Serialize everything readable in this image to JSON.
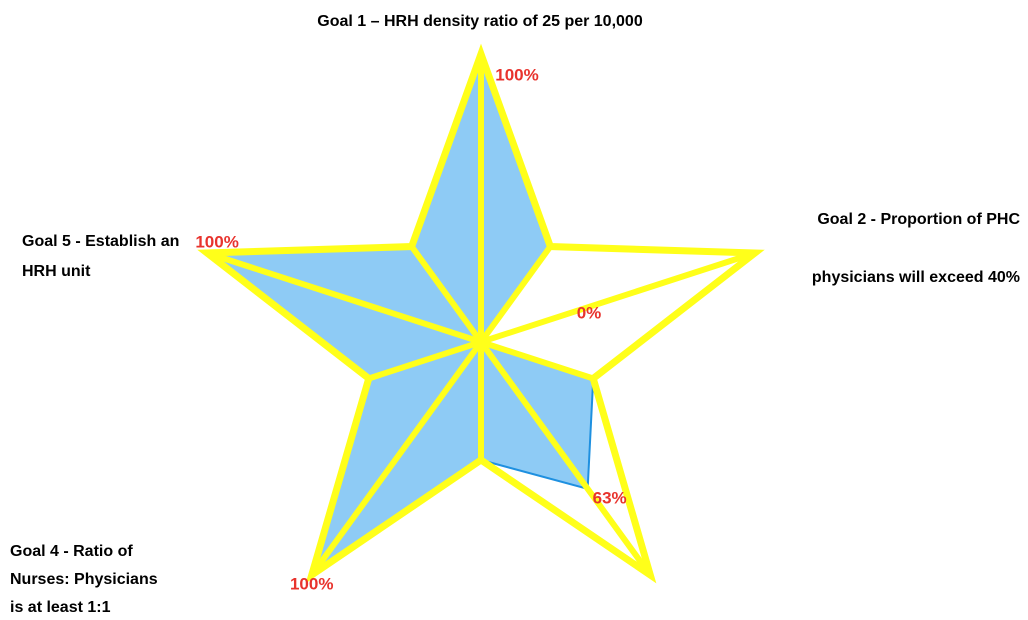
{
  "chart_data": {
    "type": "radar",
    "categories": [
      [
        "Goal 1 – HRH density ratio of 25 per 10,000"
      ],
      [
        "Goal 2 - Proportion of PHC",
        "physicians will exceed 40%"
      ],
      null,
      [
        "Goal 4  - Ratio of",
        "Nurses: Physicians",
        " is at least 1:1"
      ],
      [
        "Goal 5 - Establish an",
        "HRH  unit"
      ]
    ],
    "values": [
      100,
      0,
      63,
      100,
      100
    ],
    "value_labels": [
      "100%",
      "0%",
      "63%",
      "100%",
      "100%"
    ],
    "ylim": [
      0,
      100
    ],
    "color": "#8ecbf5",
    "edge_color": "#1e90e0",
    "frame_color": "#ffff1a"
  }
}
